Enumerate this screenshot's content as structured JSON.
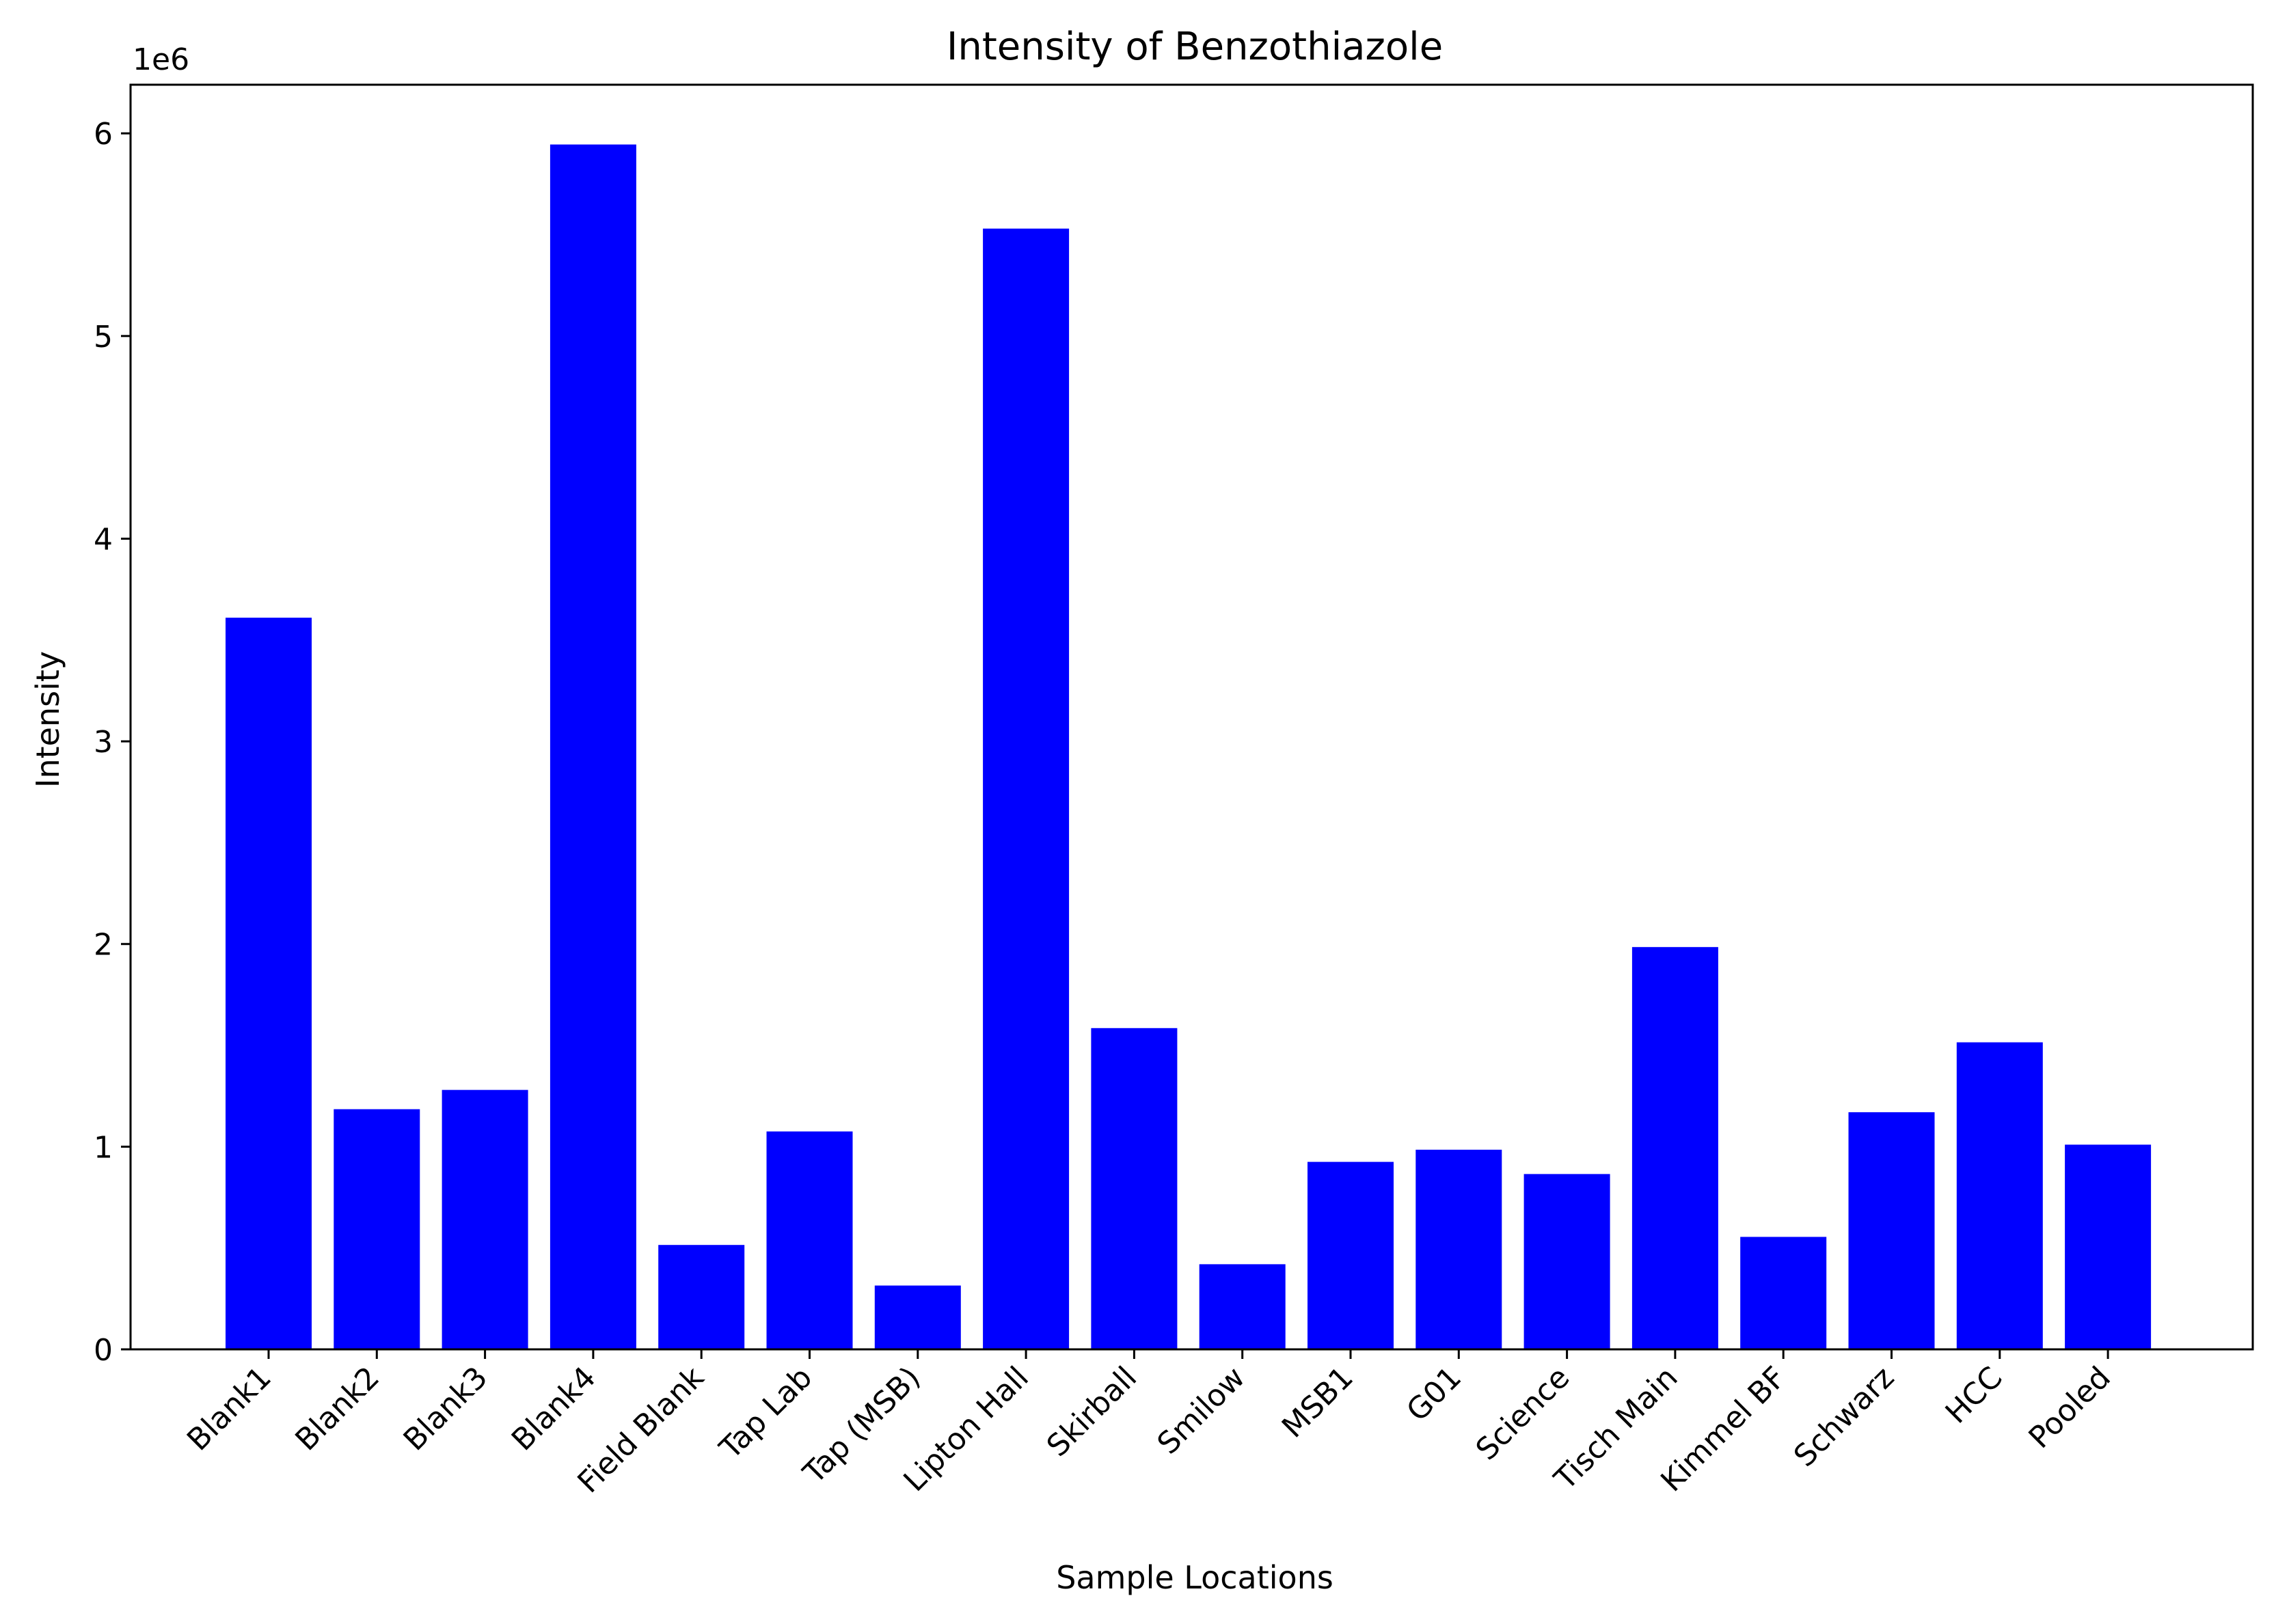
{
  "chart_data": {
    "type": "bar",
    "title": "Intensity of Benzothiazole",
    "xlabel": "Sample Locations",
    "ylabel": "Intensity",
    "y_offset_label": "1e6",
    "categories": [
      "Blank1",
      "Blank2",
      "Blank3",
      "Blank4",
      "Field Blank",
      "Tap Lab",
      "Tap (MSB)",
      "Lipton Hall",
      "Skirball",
      "Smilow",
      "MSB1",
      "G01",
      "Science",
      "Tisch Main",
      "Kimmel BF",
      "Schwarz",
      "HCC",
      "Pooled"
    ],
    "values": [
      3610000,
      1185000,
      1280000,
      5945000,
      515000,
      1075000,
      315000,
      5530000,
      1585000,
      420000,
      925000,
      985000,
      865000,
      1985000,
      555000,
      1170000,
      1515000,
      1010000
    ],
    "ylim": [
      0,
      6240000
    ],
    "yticks": [
      0,
      1000000,
      2000000,
      3000000,
      4000000,
      5000000,
      6000000
    ],
    "ytick_labels": [
      "0",
      "1",
      "2",
      "3",
      "4",
      "5",
      "6"
    ],
    "bar_color": "#0000ff",
    "grid": false
  }
}
